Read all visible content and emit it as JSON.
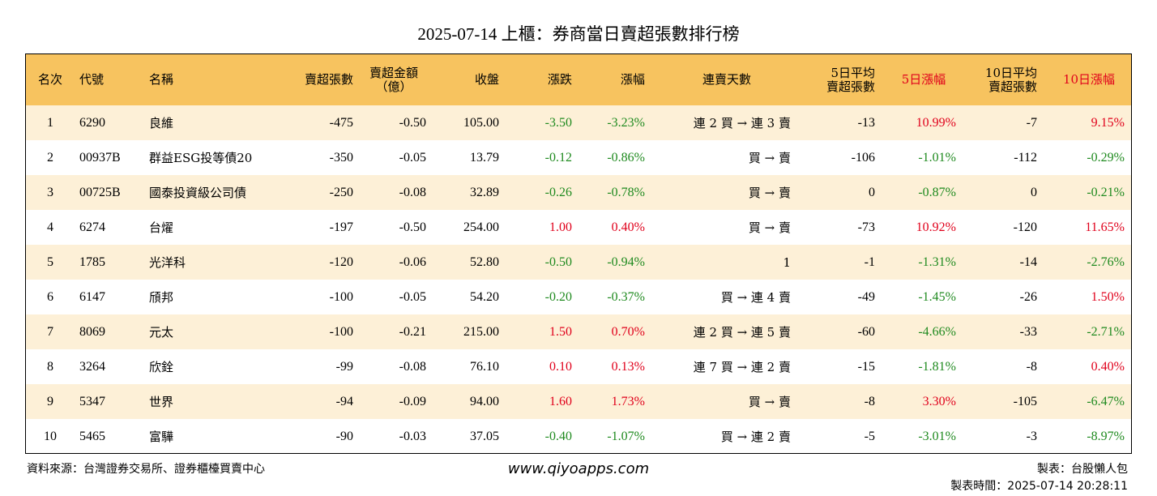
{
  "title": "2025-07-14 上櫃：券商當日賣超張數排行榜",
  "headers": {
    "rank": "名次",
    "code": "代號",
    "name": "名稱",
    "sell_volume": "賣超張數",
    "sell_amount_1": "賣超金額",
    "sell_amount_2": "（億）",
    "close": "收盤",
    "change": "漲跌",
    "change_pct": "漲幅",
    "streak": "連賣天數",
    "avg5_1": "5日平均",
    "avg5_2": "賣超張數",
    "pct5": "5日漲幅",
    "avg10_1": "10日平均",
    "avg10_2": "賣超張數",
    "pct10": "10日漲幅"
  },
  "rows": [
    {
      "rank": "1",
      "code": "6290",
      "name": "良維",
      "sell_volume": "-475",
      "sell_amount": "-0.50",
      "close": "105.00",
      "change": "-3.50",
      "change_pct": "-3.23%",
      "streak": "連 2 買 → 連 3 賣",
      "avg5": "-13",
      "pct5": "10.99%",
      "avg10": "-7",
      "pct10": "9.15%"
    },
    {
      "rank": "2",
      "code": "00937B",
      "name": "群益ESG投等債20",
      "sell_volume": "-350",
      "sell_amount": "-0.05",
      "close": "13.79",
      "change": "-0.12",
      "change_pct": "-0.86%",
      "streak": "買 → 賣",
      "avg5": "-106",
      "pct5": "-1.01%",
      "avg10": "-112",
      "pct10": "-0.29%"
    },
    {
      "rank": "3",
      "code": "00725B",
      "name": "國泰投資級公司債",
      "sell_volume": "-250",
      "sell_amount": "-0.08",
      "close": "32.89",
      "change": "-0.26",
      "change_pct": "-0.78%",
      "streak": "買 → 賣",
      "avg5": "0",
      "pct5": "-0.87%",
      "avg10": "0",
      "pct10": "-0.21%"
    },
    {
      "rank": "4",
      "code": "6274",
      "name": "台燿",
      "sell_volume": "-197",
      "sell_amount": "-0.50",
      "close": "254.00",
      "change": "1.00",
      "change_pct": "0.40%",
      "streak": "買 → 賣",
      "avg5": "-73",
      "pct5": "10.92%",
      "avg10": "-120",
      "pct10": "11.65%"
    },
    {
      "rank": "5",
      "code": "1785",
      "name": "光洋科",
      "sell_volume": "-120",
      "sell_amount": "-0.06",
      "close": "52.80",
      "change": "-0.50",
      "change_pct": "-0.94%",
      "streak": "1",
      "avg5": "-1",
      "pct5": "-1.31%",
      "avg10": "-14",
      "pct10": "-2.76%"
    },
    {
      "rank": "6",
      "code": "6147",
      "name": "頎邦",
      "sell_volume": "-100",
      "sell_amount": "-0.05",
      "close": "54.20",
      "change": "-0.20",
      "change_pct": "-0.37%",
      "streak": "買 → 連 4 賣",
      "avg5": "-49",
      "pct5": "-1.45%",
      "avg10": "-26",
      "pct10": "1.50%"
    },
    {
      "rank": "7",
      "code": "8069",
      "name": "元太",
      "sell_volume": "-100",
      "sell_amount": "-0.21",
      "close": "215.00",
      "change": "1.50",
      "change_pct": "0.70%",
      "streak": "連 2 買 → 連 5 賣",
      "avg5": "-60",
      "pct5": "-4.66%",
      "avg10": "-33",
      "pct10": "-2.71%"
    },
    {
      "rank": "8",
      "code": "3264",
      "name": "欣銓",
      "sell_volume": "-99",
      "sell_amount": "-0.08",
      "close": "76.10",
      "change": "0.10",
      "change_pct": "0.13%",
      "streak": "連 7 買 → 連 2 賣",
      "avg5": "-15",
      "pct5": "-1.81%",
      "avg10": "-8",
      "pct10": "0.40%"
    },
    {
      "rank": "9",
      "code": "5347",
      "name": "世界",
      "sell_volume": "-94",
      "sell_amount": "-0.09",
      "close": "94.00",
      "change": "1.60",
      "change_pct": "1.73%",
      "streak": "買 → 賣",
      "avg5": "-8",
      "pct5": "3.30%",
      "avg10": "-105",
      "pct10": "-6.47%"
    },
    {
      "rank": "10",
      "code": "5465",
      "name": "富驊",
      "sell_volume": "-90",
      "sell_amount": "-0.03",
      "close": "37.05",
      "change": "-0.40",
      "change_pct": "-1.07%",
      "streak": "買 → 連 2 賣",
      "avg5": "-5",
      "pct5": "-3.01%",
      "avg10": "-3",
      "pct10": "-8.97%"
    }
  ],
  "colors": {
    "header_bg": "#f7c35f",
    "stripe_bg": "#fdf0d7",
    "up": "#e0001b",
    "down": "#1f8a1f"
  },
  "footer": {
    "source": "資料來源：台灣證券交易所、證券櫃檯買賣中心",
    "website": "www.qiyoapps.com",
    "maker": "製表：台股懶人包",
    "made_time": "製表時間：2025-07-14 20:28:11"
  }
}
